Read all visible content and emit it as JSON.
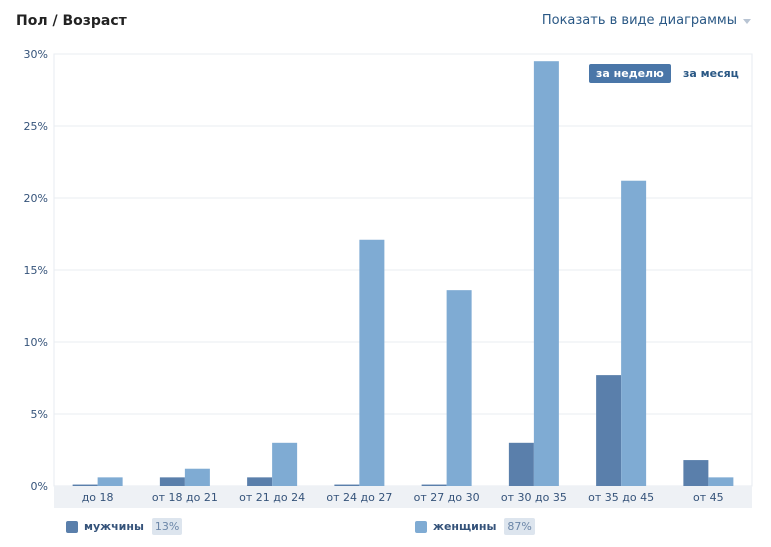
{
  "header": {
    "title": "Пол / Возраст",
    "view_toggle_label": "Показать в виде диаграммы"
  },
  "period_tabs": [
    {
      "label": "за неделю",
      "active": true
    },
    {
      "label": "за месяц",
      "active": false
    }
  ],
  "legend": [
    {
      "name": "мужчины",
      "percent": "13%",
      "color": "#5a7fab"
    },
    {
      "name": "женщины",
      "percent": "87%",
      "color": "#7fabd3"
    }
  ],
  "chart_data": {
    "type": "bar",
    "categories": [
      "до 18",
      "от 18 до 21",
      "от 21 до 24",
      "от 24 до 27",
      "от 27 до 30",
      "от 30 до 35",
      "от 35 до 45",
      "от 45"
    ],
    "series": [
      {
        "name": "мужчины",
        "values": [
          0.1,
          0.6,
          0.6,
          0.1,
          0.1,
          3.0,
          7.7,
          1.8
        ],
        "color": "#5a7fab"
      },
      {
        "name": "женщины",
        "values": [
          0.6,
          1.2,
          3.0,
          17.1,
          13.6,
          29.5,
          21.2,
          0.6
        ],
        "color": "#7fabd3"
      }
    ],
    "ylim": [
      0,
      30
    ],
    "yticks": [
      0,
      5,
      10,
      15,
      20,
      25,
      30
    ],
    "ytick_labels": [
      "0%",
      "5%",
      "10%",
      "15%",
      "20%",
      "25%",
      "30%"
    ],
    "grid": true
  }
}
